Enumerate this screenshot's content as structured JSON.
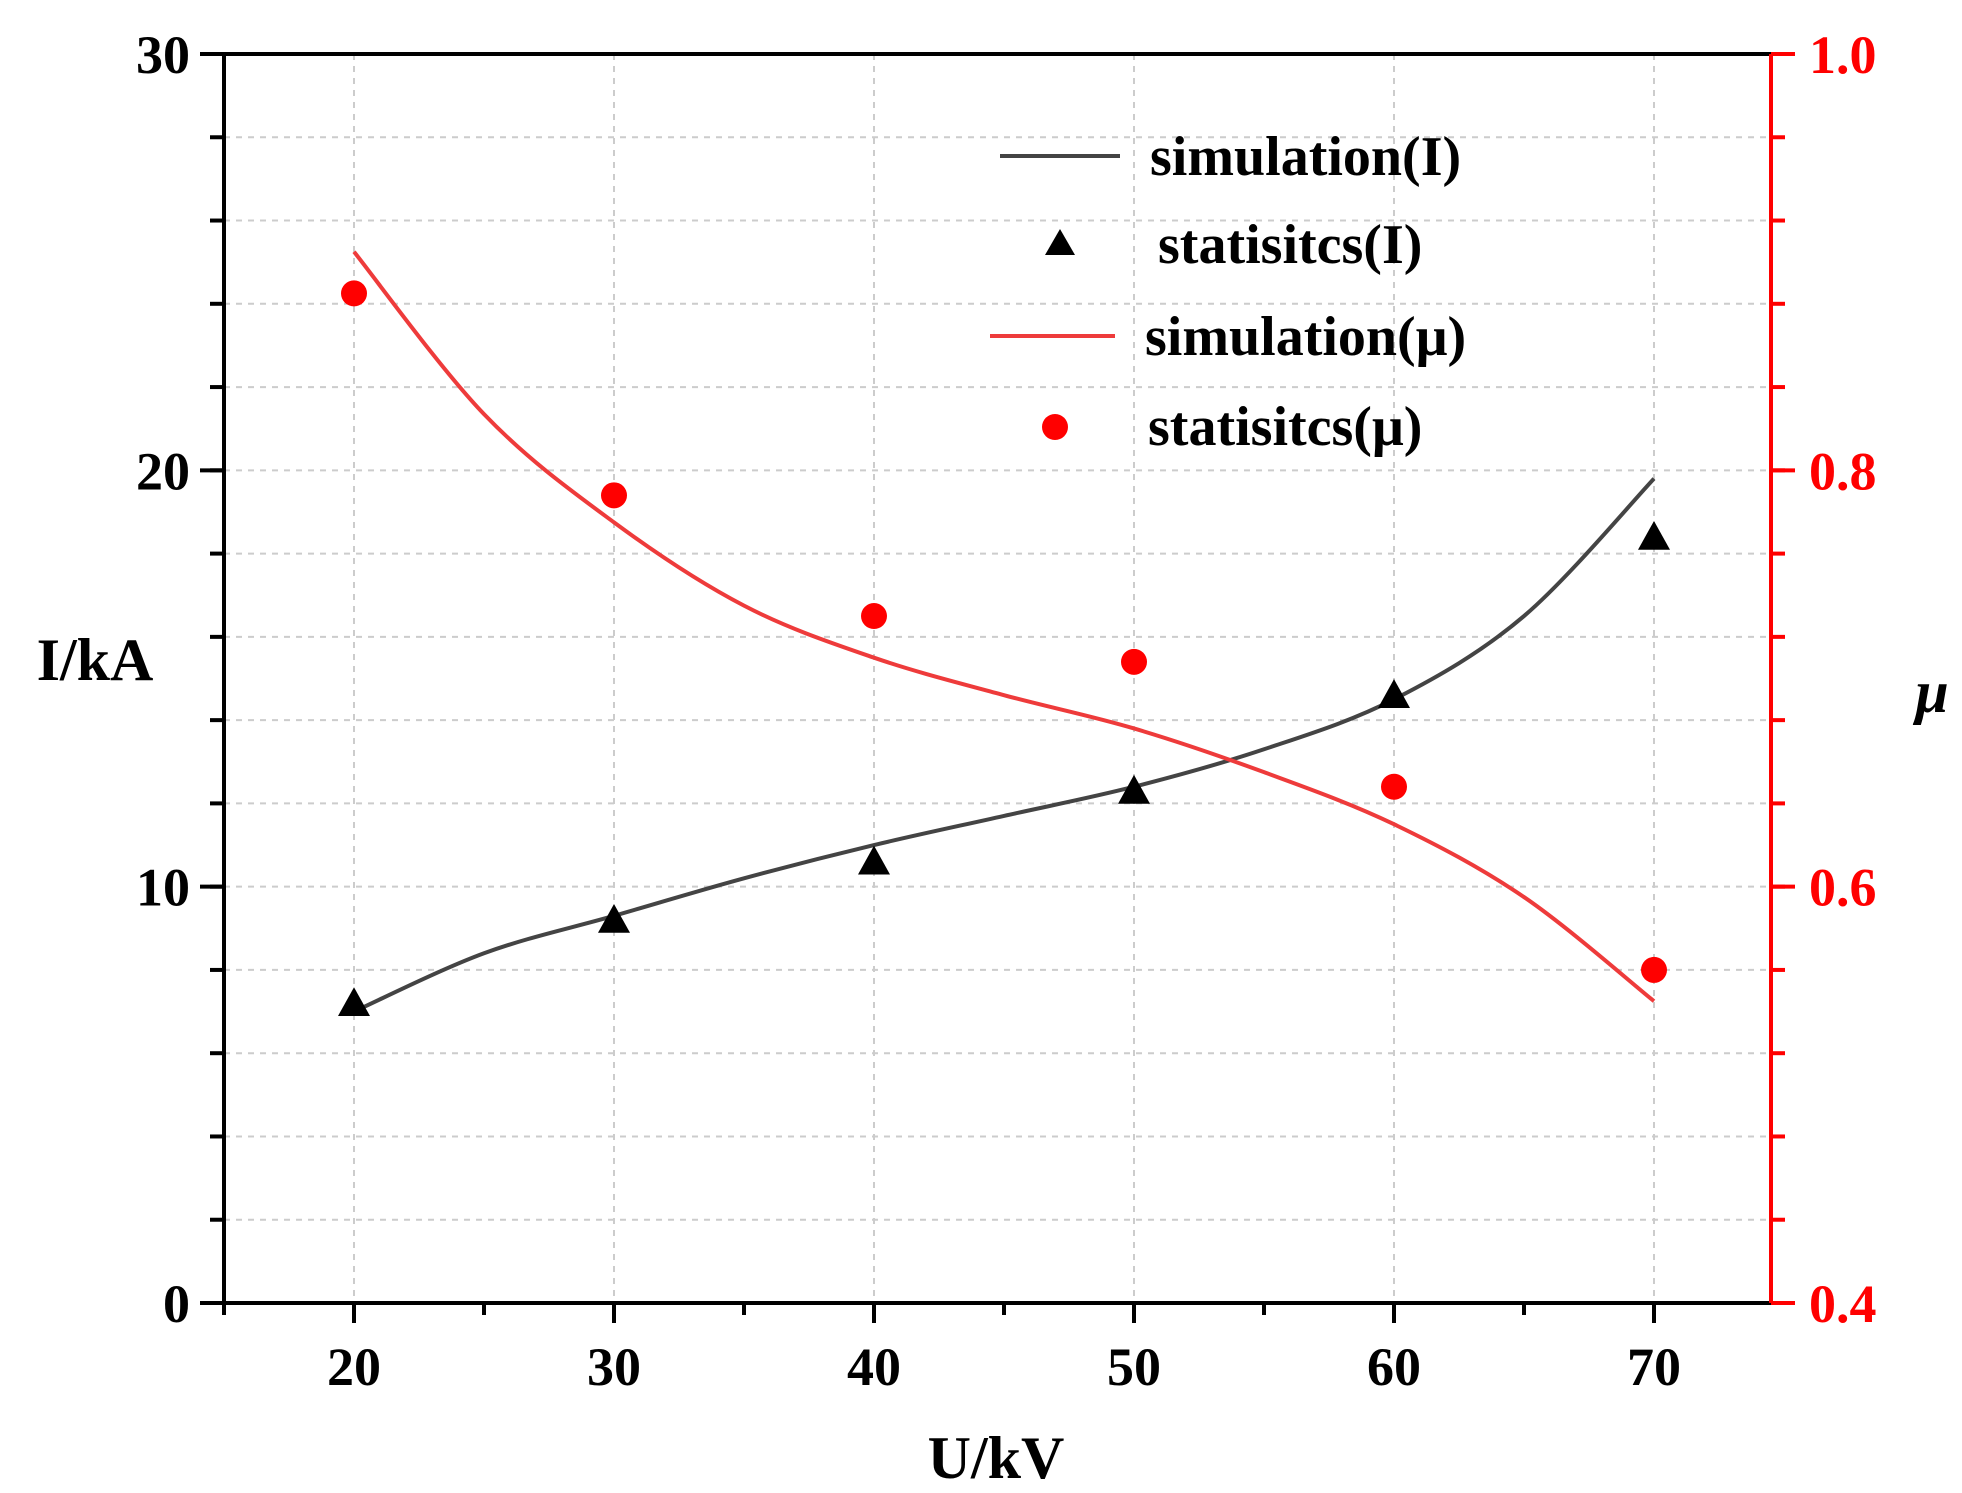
{
  "chart_data": {
    "type": "line",
    "title": "",
    "xlabel": "U/kV",
    "ylabel": "I/kA",
    "y2label": "μ",
    "xlim": [
      15,
      74.5
    ],
    "ylim": [
      0,
      30
    ],
    "y2lim": [
      0.4,
      1.0
    ],
    "grid": true,
    "x_ticks": [
      "20",
      "30",
      "40",
      "50",
      "60",
      "70"
    ],
    "y_ticks": [
      "0",
      "10",
      "20",
      "30"
    ],
    "y2_ticks": [
      "0.4",
      "0.6",
      "0.8",
      "1.0"
    ],
    "legend_position": "top-right",
    "colors": {
      "black": "#000000",
      "line_black": "#444444",
      "red": "#ff0000",
      "line_red": "#ee3b3b"
    },
    "series": [
      {
        "name": "simulation(I)",
        "kind": "line",
        "axis": "left",
        "color": "#444444",
        "x": [
          20,
          25,
          30,
          35,
          40,
          45,
          50,
          55,
          60,
          65,
          70
        ],
        "y": [
          7.0,
          8.4,
          9.3,
          10.2,
          11.0,
          11.7,
          12.4,
          13.3,
          14.5,
          16.5,
          19.8
        ]
      },
      {
        "name": "statisitcs(I)",
        "kind": "triangle",
        "axis": "left",
        "color": "#000000",
        "x": [
          20,
          30,
          40,
          50,
          60,
          70
        ],
        "y": [
          7.2,
          9.2,
          10.6,
          12.3,
          14.6,
          18.4
        ]
      },
      {
        "name": "simulation(μ)",
        "kind": "line",
        "axis": "right",
        "color": "#ee3b3b",
        "x": [
          20,
          25,
          30,
          35,
          40,
          45,
          50,
          55,
          60,
          65,
          70
        ],
        "y": [
          0.905,
          0.827,
          0.775,
          0.735,
          0.71,
          0.692,
          0.676,
          0.655,
          0.63,
          0.595,
          0.545
        ]
      },
      {
        "name": "statisitcs(μ)",
        "kind": "circle",
        "axis": "right",
        "color": "#ff0000",
        "x": [
          20,
          30,
          40,
          50,
          60,
          70
        ],
        "y": [
          0.885,
          0.788,
          0.73,
          0.708,
          0.648,
          0.56
        ]
      }
    ]
  }
}
